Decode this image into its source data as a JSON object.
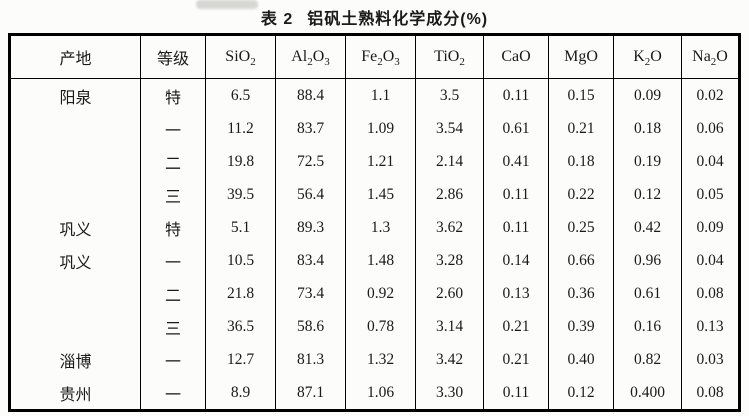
{
  "title": {
    "label": "表 2",
    "text": "铝矾土熟料化学成分(%)"
  },
  "table": {
    "columns": [
      "产地",
      "等级",
      "SiO₂",
      "Al₂O₃",
      "Fe₂O₃",
      "TiO₂",
      "CaO",
      "MgO",
      "K₂O",
      "Na₂O"
    ],
    "rows": [
      {
        "origin": "阳泉",
        "grade": "特",
        "values": [
          "6.5",
          "88.4",
          "1.1",
          "3.5",
          "0.11",
          "0.15",
          "0.09",
          "0.02"
        ]
      },
      {
        "origin": "",
        "grade": "一",
        "values": [
          "11.2",
          "83.7",
          "1.09",
          "3.54",
          "0.61",
          "0.21",
          "0.18",
          "0.06"
        ]
      },
      {
        "origin": "",
        "grade": "二",
        "values": [
          "19.8",
          "72.5",
          "1.21",
          "2.14",
          "0.41",
          "0.18",
          "0.19",
          "0.04"
        ]
      },
      {
        "origin": "",
        "grade": "三",
        "values": [
          "39.5",
          "56.4",
          "1.45",
          "2.86",
          "0.11",
          "0.22",
          "0.12",
          "0.05"
        ]
      },
      {
        "origin": "巩义",
        "grade": "特",
        "values": [
          "5.1",
          "89.3",
          "1.3",
          "3.62",
          "0.11",
          "0.25",
          "0.42",
          "0.09"
        ]
      },
      {
        "origin": "巩义",
        "grade": "一",
        "values": [
          "10.5",
          "83.4",
          "1.48",
          "3.28",
          "0.14",
          "0.66",
          "0.96",
          "0.04"
        ]
      },
      {
        "origin": "",
        "grade": "二",
        "values": [
          "21.8",
          "73.4",
          "0.92",
          "2.60",
          "0.13",
          "0.36",
          "0.61",
          "0.08"
        ]
      },
      {
        "origin": "",
        "grade": "三",
        "values": [
          "36.5",
          "58.6",
          "0.78",
          "3.14",
          "0.21",
          "0.39",
          "0.16",
          "0.13"
        ]
      },
      {
        "origin": "淄博",
        "grade": "一",
        "values": [
          "12.7",
          "81.3",
          "1.32",
          "3.42",
          "0.21",
          "0.40",
          "0.82",
          "0.03"
        ]
      },
      {
        "origin": "贵州",
        "grade": "一",
        "values": [
          "8.9",
          "87.1",
          "1.06",
          "3.30",
          "0.11",
          "0.12",
          "0.400",
          "0.08"
        ]
      }
    ]
  },
  "colors": {
    "border": "#000000",
    "text": "#1a1a1a",
    "background": "#fcfcfb"
  }
}
